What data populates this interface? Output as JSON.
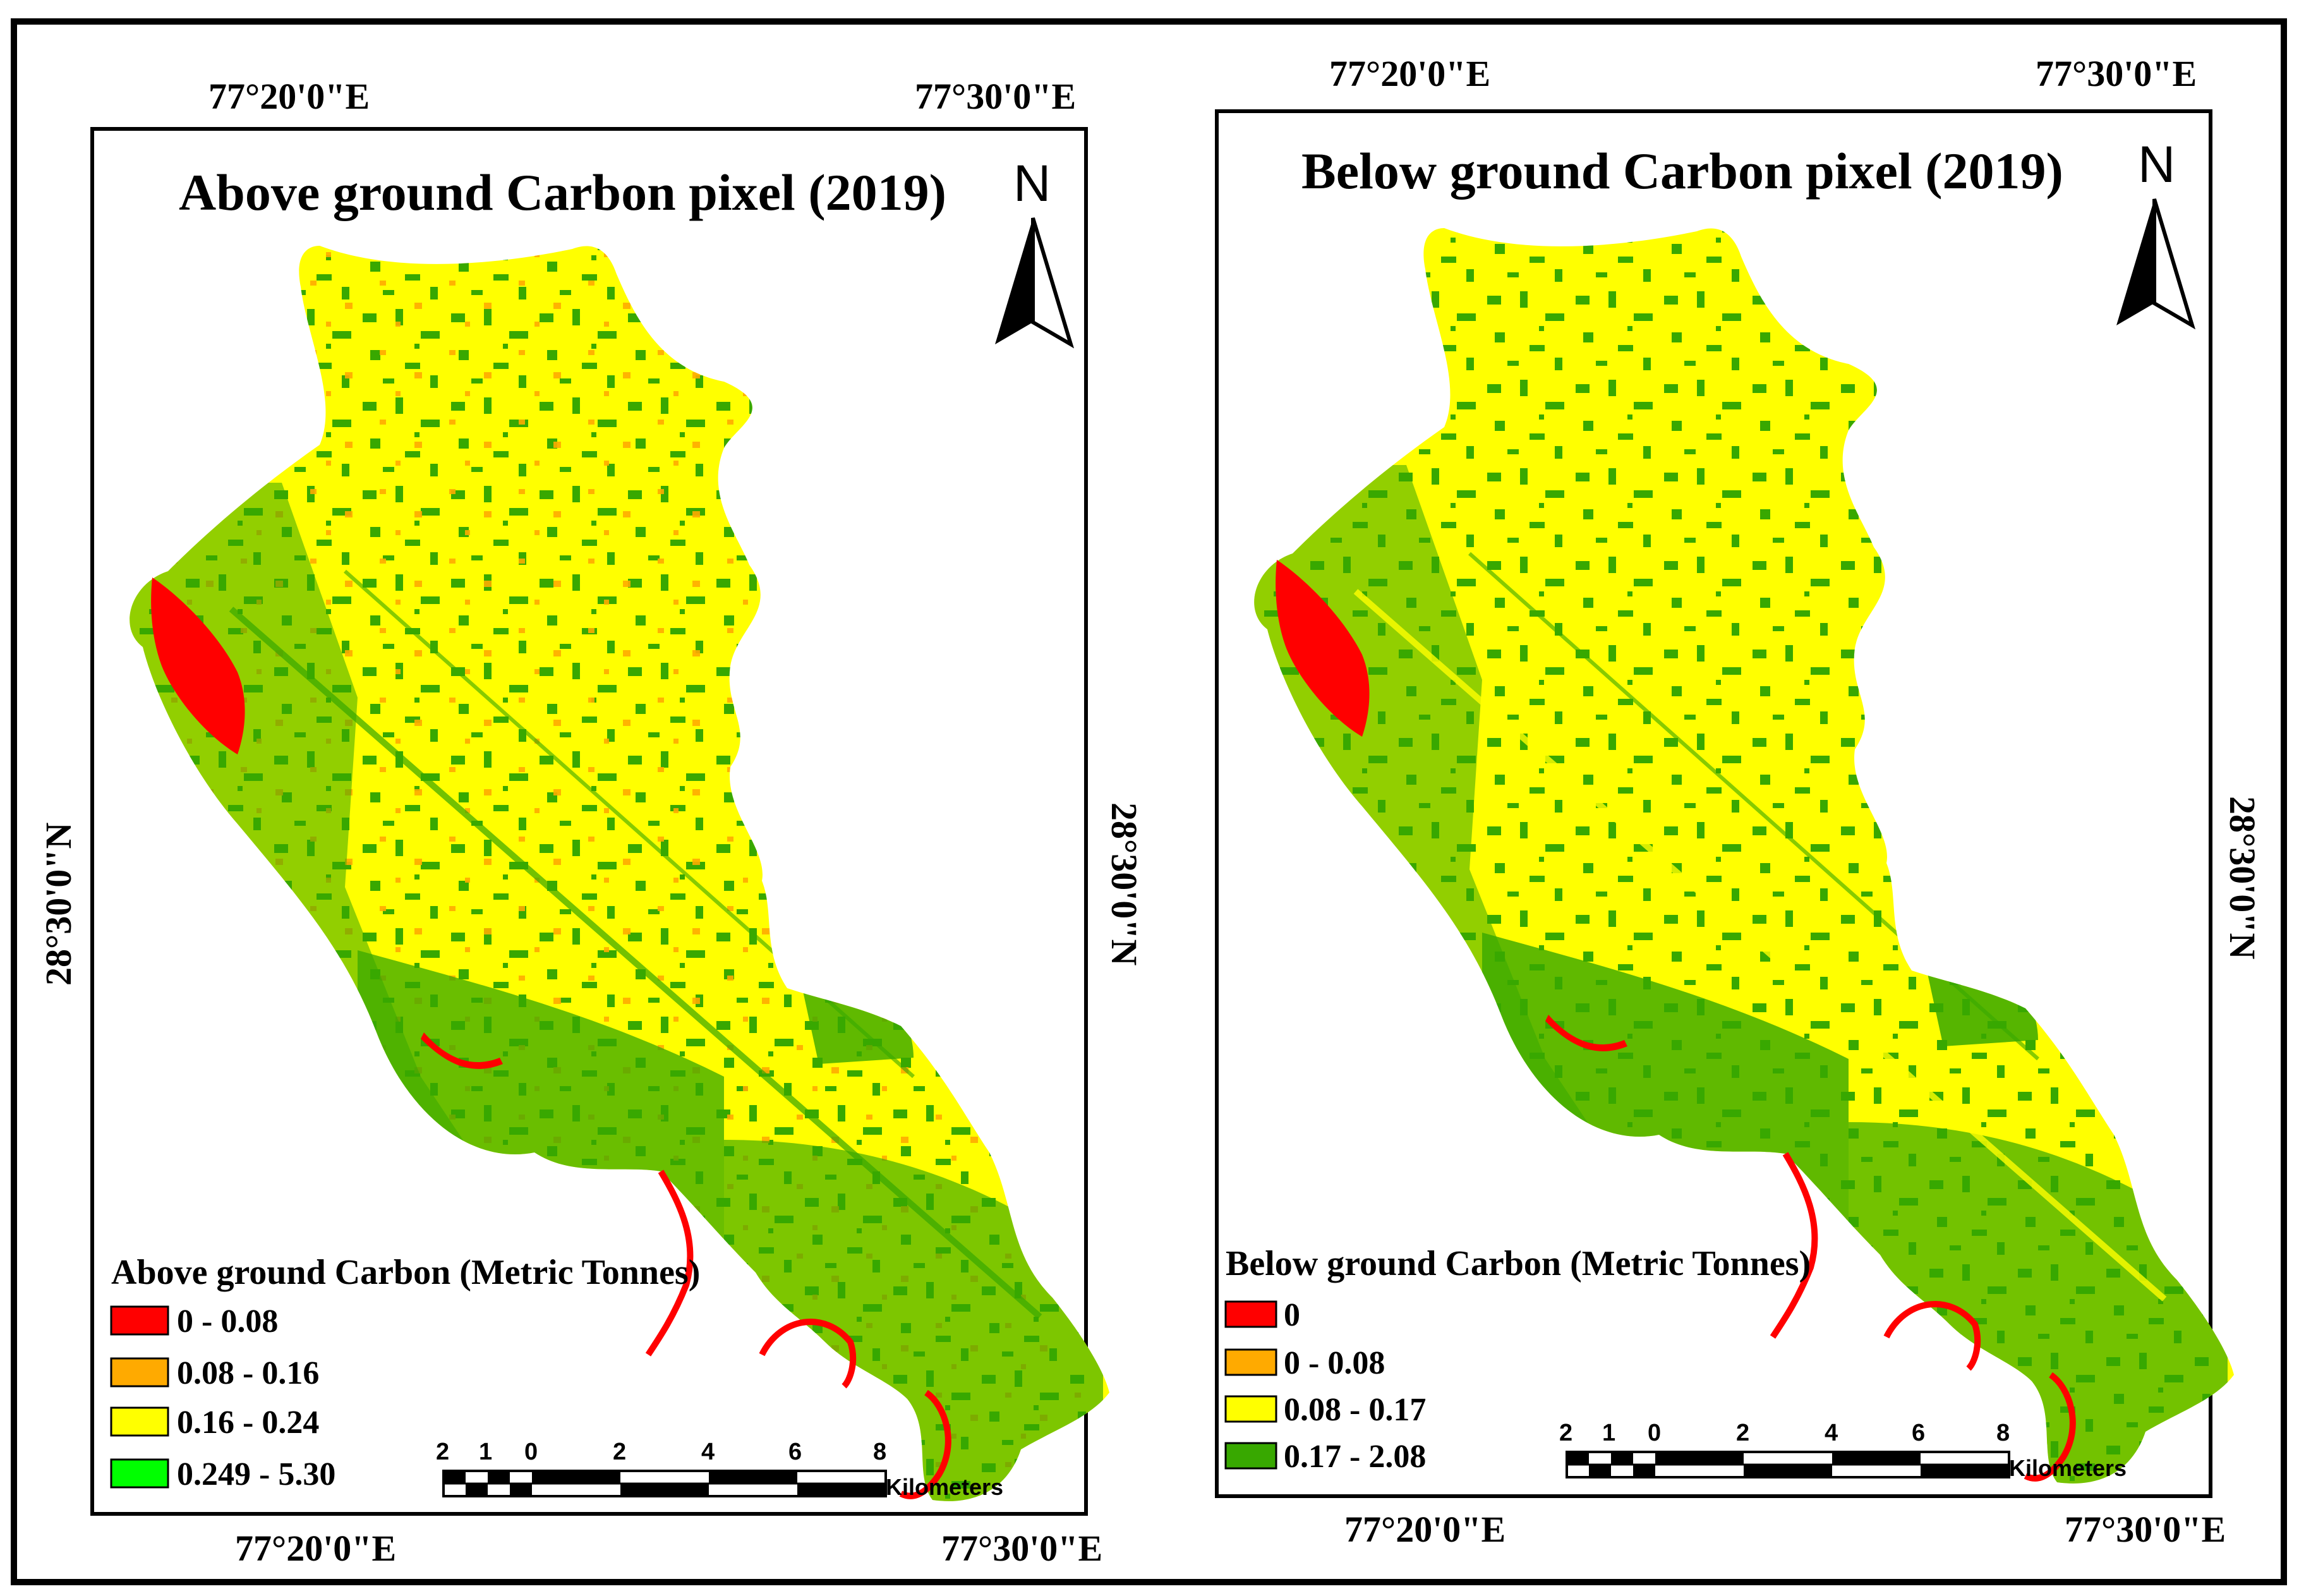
{
  "figure": {
    "colors": {
      "red": "#ff0000",
      "orange": "#ffaa00",
      "yellow": "#ffff00",
      "bright_green": "#00ff00",
      "dark_green": "#38a800"
    },
    "panels": [
      {
        "title": "Above ground Carbon pixel (2019)",
        "north": "N",
        "coords": {
          "top_left": "77°20'0\"E",
          "top_right": "77°30'0\"E",
          "bottom_left": "77°20'0\"E",
          "bottom_right": "77°30'0\"E",
          "left": "28°30'0\"N",
          "right": "28°30'0\"N"
        },
        "legend": {
          "title": "Above ground Carbon (Metric Tonnes)",
          "items": [
            {
              "label": "0 - 0.08",
              "color": "#ff0000"
            },
            {
              "label": "0.08 - 0.16",
              "color": "#ffaa00"
            },
            {
              "label": "0.16 - 0.24",
              "color": "#ffff00"
            },
            {
              "label": "0.249 - 5.30",
              "color": "#00ff00"
            }
          ]
        },
        "scale": {
          "ticks": [
            "2",
            "1",
            "0",
            "2",
            "4",
            "6",
            "8"
          ],
          "unit": "Kilometers"
        }
      },
      {
        "title": "Below ground Carbon pixel (2019)",
        "north": "N",
        "coords": {
          "top_left": "77°20'0\"E",
          "top_right": "77°30'0\"E",
          "bottom_left": "77°20'0\"E",
          "bottom_right": "77°30'0\"E",
          "right": "28°30'0\"N"
        },
        "legend": {
          "title": "Below ground Carbon (Metric Tonnes)",
          "items": [
            {
              "label": "0",
              "color": "#ff0000"
            },
            {
              "label": "0 - 0.08",
              "color": "#ffaa00"
            },
            {
              "label": "0.08 - 0.17",
              "color": "#ffff00"
            },
            {
              "label": "0.17 - 2.08",
              "color": "#38a800"
            }
          ]
        },
        "scale": {
          "ticks": [
            "2",
            "1",
            "0",
            "2",
            "4",
            "6",
            "8"
          ],
          "unit": "Kilometers"
        }
      }
    ]
  }
}
